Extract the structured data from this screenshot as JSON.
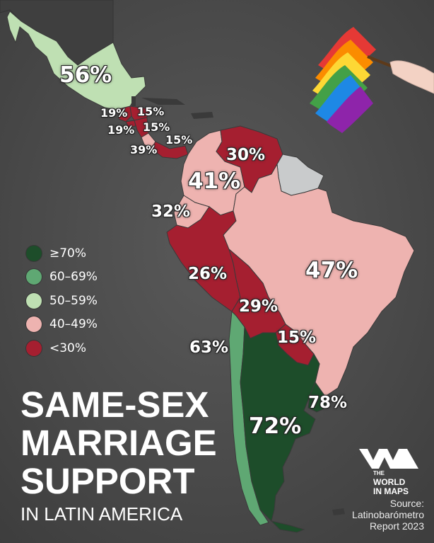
{
  "title": {
    "line1": "SAME-SEX",
    "line2": "MARRIAGE",
    "line3": "SUPPORT",
    "subtitle": "IN LATIN AMERICA"
  },
  "legend": [
    {
      "label": "≥70%",
      "color": "#1d4d2a"
    },
    {
      "label": "60–69%",
      "color": "#5fa873"
    },
    {
      "label": "50–59%",
      "color": "#bfe0b3"
    },
    {
      "label": "40–49%",
      "color": "#eeb3b0"
    },
    {
      "label": "<30%",
      "color": "#a51f30"
    }
  ],
  "map_values": {
    "mexico": "56%",
    "guatemala": "19%",
    "el_salvador": "19%",
    "honduras": "15%",
    "nicaragua": "15%",
    "costa_rica": "39%",
    "panama": "15%",
    "venezuela": "30%",
    "colombia": "41%",
    "ecuador": "32%",
    "peru": "26%",
    "brazil": "47%",
    "bolivia": "29%",
    "paraguay": "15%",
    "chile": "63%",
    "argentina": "72%",
    "uruguay": "78%"
  },
  "brand": {
    "line1": "THE",
    "line2": "WORLD",
    "line3": "IN MAPS"
  },
  "source": {
    "line1": "Source:",
    "line2": "Latinobarómetro",
    "line3": "Report 2023"
  }
}
